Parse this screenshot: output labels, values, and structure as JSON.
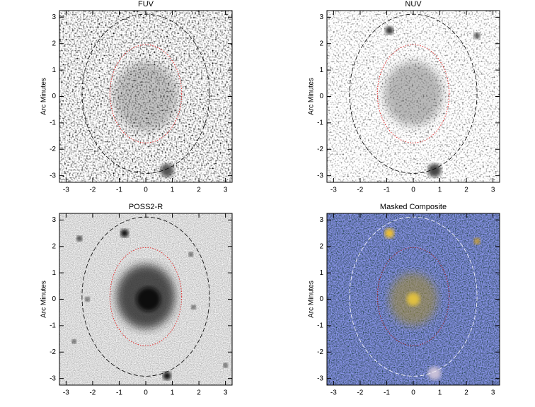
{
  "chart_data": [
    {
      "type": "image",
      "title": "FUV",
      "ylabel": "Arc Minutes",
      "style": "fuv",
      "xlim": [
        -3.25,
        3.25
      ],
      "ylim": [
        -3.25,
        3.25
      ],
      "xticks": [
        -3,
        -2,
        -1,
        0,
        1,
        2,
        3
      ],
      "yticks": [
        -3,
        -2,
        -1,
        0,
        1,
        2,
        3
      ]
    },
    {
      "type": "image",
      "title": "NUV",
      "ylabel": "Arc Minutes",
      "style": "nuv",
      "xlim": [
        -3.25,
        3.25
      ],
      "ylim": [
        -3.25,
        3.25
      ],
      "xticks": [
        -3,
        -2,
        -1,
        0,
        1,
        2,
        3
      ],
      "yticks": [
        -3,
        -2,
        -1,
        0,
        1,
        2,
        3
      ]
    },
    {
      "type": "image",
      "title": "POSS2-R",
      "ylabel": "Arc Minutes",
      "style": "optical",
      "xlim": [
        -3.25,
        3.25
      ],
      "ylim": [
        -3.25,
        3.25
      ],
      "xticks": [
        -3,
        -2,
        -1,
        0,
        1,
        2,
        3
      ],
      "yticks": [
        -3,
        -2,
        -1,
        0,
        1,
        2,
        3
      ]
    },
    {
      "type": "image",
      "title": "Masked Composite",
      "ylabel": "Arc Minutes",
      "style": "composite",
      "xlim": [
        -3.25,
        3.25
      ],
      "ylim": [
        -3.25,
        3.25
      ],
      "xticks": [
        -3,
        -2,
        -1,
        0,
        1,
        2,
        3
      ],
      "yticks": [
        -3,
        -2,
        -1,
        0,
        1,
        2,
        3
      ]
    }
  ]
}
